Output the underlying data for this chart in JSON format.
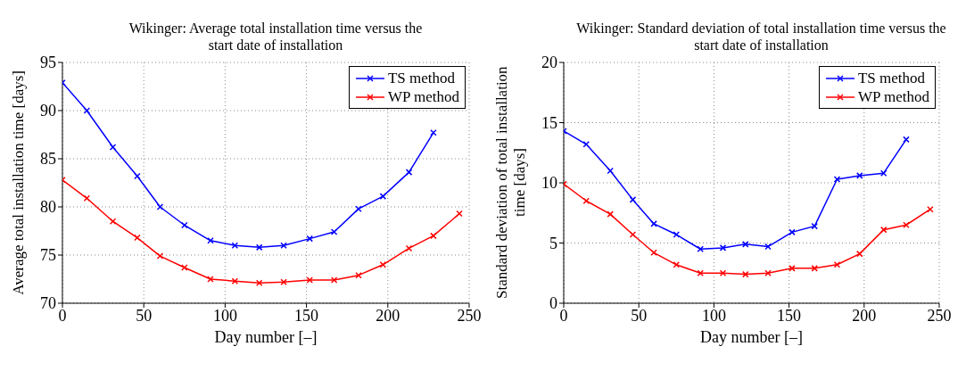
{
  "chart_data": [
    {
      "type": "line",
      "title": "Wikinger: Average total installation time versus the start date of installation",
      "xlabel": "Day number [–]",
      "ylabel": "Average total installation time [days]",
      "x": [
        0,
        15,
        31,
        46,
        60,
        75,
        91,
        106,
        121,
        136,
        152,
        167,
        182,
        197,
        213,
        228,
        244
      ],
      "series": [
        {
          "name": "TS method",
          "color": "#0000ff",
          "x": [
            0,
            15,
            31,
            46,
            60,
            75,
            91,
            106,
            121,
            136,
            152,
            167,
            182,
            197,
            213,
            228
          ],
          "values": [
            92.9,
            90.0,
            86.2,
            83.2,
            80.0,
            78.1,
            76.5,
            76.0,
            75.8,
            76.0,
            76.7,
            77.4,
            79.8,
            81.1,
            83.6,
            87.7
          ]
        },
        {
          "name": "WP method",
          "color": "#ff0000",
          "values": [
            82.8,
            80.9,
            78.5,
            76.8,
            74.9,
            73.7,
            72.5,
            72.3,
            72.1,
            72.2,
            72.4,
            72.4,
            72.9,
            74.0,
            75.7,
            77.0,
            79.3
          ]
        }
      ],
      "xlim": [
        0,
        250
      ],
      "xticks": [
        0,
        50,
        100,
        150,
        200,
        250
      ],
      "ylim": [
        70,
        95
      ],
      "yticks": [
        70,
        75,
        80,
        85,
        90,
        95
      ],
      "grid": true,
      "legend": "top right",
      "marker": "cross",
      "line_style": "solid"
    },
    {
      "type": "line",
      "title": "Wikinger: Standard deviation of total installation time versus the start date of installation",
      "xlabel": "Day number [–]",
      "ylabel": "Standard deviation of total installation time [days]",
      "x": [
        0,
        15,
        31,
        46,
        60,
        75,
        91,
        106,
        121,
        136,
        152,
        167,
        182,
        197,
        213,
        228,
        244
      ],
      "series": [
        {
          "name": "TS method",
          "color": "#0000ff",
          "x": [
            0,
            15,
            31,
            46,
            60,
            75,
            91,
            106,
            121,
            136,
            152,
            167,
            182,
            197,
            213,
            228
          ],
          "values": [
            14.3,
            13.2,
            11.0,
            8.6,
            6.6,
            5.7,
            4.5,
            4.6,
            4.9,
            4.7,
            5.9,
            6.4,
            10.3,
            10.6,
            10.8,
            13.6
          ]
        },
        {
          "name": "WP method",
          "color": "#ff0000",
          "values": [
            9.9,
            8.5,
            7.4,
            5.7,
            4.2,
            3.2,
            2.5,
            2.5,
            2.4,
            2.5,
            2.9,
            2.9,
            3.2,
            4.1,
            6.1,
            6.5,
            7.8
          ]
        }
      ],
      "xlim": [
        0,
        250
      ],
      "xticks": [
        0,
        50,
        100,
        150,
        200,
        250
      ],
      "ylim": [
        0,
        20
      ],
      "yticks": [
        0,
        5,
        10,
        15,
        20
      ],
      "grid": true,
      "legend": "top right",
      "marker": "cross",
      "line_style": "solid"
    }
  ]
}
